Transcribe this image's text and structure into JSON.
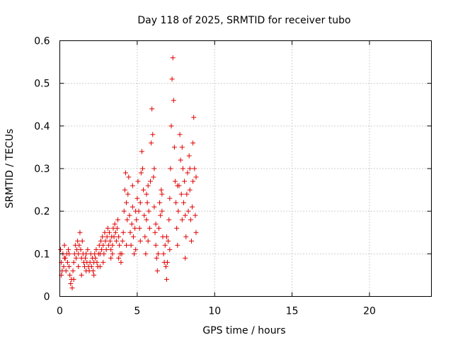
{
  "chart_data": {
    "type": "scatter",
    "title": "Day 118 of 2025, SRMTID for receiver tubo",
    "xlabel": "GPS time / hours",
    "ylabel": "SRMTID / TECUs",
    "xlim": [
      0,
      24
    ],
    "ylim": [
      0,
      0.6
    ],
    "xticks": [
      0,
      5,
      10,
      15,
      20
    ],
    "xtick_labels": [
      "0",
      "5",
      "10",
      "15",
      "20"
    ],
    "yticks": [
      0,
      0.1,
      0.2,
      0.3,
      0.4,
      0.5,
      0.6
    ],
    "ytick_labels": [
      "0",
      "0.1",
      "0.2",
      "0.3",
      "0.4",
      "0.5",
      "0.6"
    ],
    "grid": true,
    "marker": "+",
    "color": "#e00000",
    "series": [
      {
        "name": "SRMTID",
        "points": [
          [
            0.05,
            0.11
          ],
          [
            0.1,
            0.08
          ],
          [
            0.15,
            0.06
          ],
          [
            0.2,
            0.1
          ],
          [
            0.25,
            0.07
          ],
          [
            0.3,
            0.12
          ],
          [
            0.35,
            0.09
          ],
          [
            0.4,
            0.06
          ],
          [
            0.45,
            0.1
          ],
          [
            0.5,
            0.08
          ],
          [
            0.55,
            0.11
          ],
          [
            0.6,
            0.07
          ],
          [
            0.65,
            0.05
          ],
          [
            0.7,
            0.03
          ],
          [
            0.75,
            0.04
          ],
          [
            0.8,
            0.02
          ],
          [
            0.85,
            0.06
          ],
          [
            0.9,
            0.08
          ],
          [
            0.95,
            0.1
          ],
          [
            1.0,
            0.12
          ],
          [
            1.05,
            0.09
          ],
          [
            1.1,
            0.11
          ],
          [
            1.15,
            0.13
          ],
          [
            1.2,
            0.1
          ],
          [
            1.25,
            0.12
          ],
          [
            1.3,
            0.15
          ],
          [
            1.35,
            0.11
          ],
          [
            1.4,
            0.09
          ],
          [
            1.45,
            0.13
          ],
          [
            1.5,
            0.1
          ],
          [
            1.55,
            0.08
          ],
          [
            1.6,
            0.07
          ],
          [
            1.65,
            0.09
          ],
          [
            1.7,
            0.06
          ],
          [
            1.75,
            0.08
          ],
          [
            1.8,
            0.11
          ],
          [
            1.85,
            0.07
          ],
          [
            1.9,
            0.06
          ],
          [
            1.95,
            0.08
          ],
          [
            2.0,
            0.1
          ],
          [
            2.05,
            0.07
          ],
          [
            2.1,
            0.09
          ],
          [
            2.15,
            0.06
          ],
          [
            2.2,
            0.08
          ],
          [
            2.25,
            0.1
          ],
          [
            2.3,
            0.09
          ],
          [
            2.35,
            0.11
          ],
          [
            2.4,
            0.08
          ],
          [
            2.45,
            0.07
          ],
          [
            2.5,
            0.1
          ],
          [
            2.55,
            0.12
          ],
          [
            2.6,
            0.1
          ],
          [
            2.65,
            0.13
          ],
          [
            2.7,
            0.11
          ],
          [
            2.75,
            0.14
          ],
          [
            2.8,
            0.12
          ],
          [
            2.85,
            0.1
          ],
          [
            2.9,
            0.15
          ],
          [
            2.95,
            0.13
          ],
          [
            3.0,
            0.11
          ],
          [
            3.05,
            0.14
          ],
          [
            3.1,
            0.16
          ],
          [
            3.15,
            0.12
          ],
          [
            3.2,
            0.15
          ],
          [
            3.25,
            0.13
          ],
          [
            3.3,
            0.11
          ],
          [
            3.35,
            0.14
          ],
          [
            3.4,
            0.12
          ],
          [
            3.45,
            0.16
          ],
          [
            3.5,
            0.14
          ],
          [
            3.55,
            0.17
          ],
          [
            3.6,
            0.15
          ],
          [
            3.65,
            0.13
          ],
          [
            3.7,
            0.16
          ],
          [
            3.75,
            0.18
          ],
          [
            3.8,
            0.14
          ],
          [
            3.85,
            0.12
          ],
          [
            3.9,
            0.1
          ],
          [
            3.95,
            0.08
          ],
          [
            4.0,
            0.1
          ],
          [
            4.05,
            0.13
          ],
          [
            4.1,
            0.15
          ],
          [
            4.15,
            0.2
          ],
          [
            4.2,
            0.25
          ],
          [
            4.25,
            0.29
          ],
          [
            4.3,
            0.22
          ],
          [
            4.35,
            0.18
          ],
          [
            4.4,
            0.24
          ],
          [
            4.45,
            0.28
          ],
          [
            4.5,
            0.19
          ],
          [
            4.55,
            0.15
          ],
          [
            4.6,
            0.12
          ],
          [
            4.65,
            0.17
          ],
          [
            4.7,
            0.21
          ],
          [
            4.75,
            0.14
          ],
          [
            4.8,
            0.1
          ],
          [
            4.85,
            0.16
          ],
          [
            4.9,
            0.2
          ],
          [
            4.95,
            0.18
          ],
          [
            5.0,
            0.23
          ],
          [
            5.05,
            0.27
          ],
          [
            5.1,
            0.2
          ],
          [
            5.15,
            0.16
          ],
          [
            5.2,
            0.22
          ],
          [
            5.25,
            0.29
          ],
          [
            5.3,
            0.34
          ],
          [
            5.35,
            0.3
          ],
          [
            5.4,
            0.25
          ],
          [
            5.45,
            0.19
          ],
          [
            5.5,
            0.14
          ],
          [
            5.55,
            0.1
          ],
          [
            5.6,
            0.18
          ],
          [
            5.65,
            0.22
          ],
          [
            5.7,
            0.26
          ],
          [
            5.75,
            0.2
          ],
          [
            5.8,
            0.16
          ],
          [
            5.85,
            0.27
          ],
          [
            5.9,
            0.36
          ],
          [
            5.95,
            0.44
          ],
          [
            6.0,
            0.38
          ],
          [
            6.05,
            0.28
          ],
          [
            6.1,
            0.21
          ],
          [
            6.15,
            0.15
          ],
          [
            6.2,
            0.12
          ],
          [
            6.25,
            0.09
          ],
          [
            6.3,
            0.06
          ],
          [
            6.35,
            0.1
          ],
          [
            6.4,
            0.16
          ],
          [
            6.45,
            0.22
          ],
          [
            6.5,
            0.19
          ],
          [
            6.55,
            0.25
          ],
          [
            6.6,
            0.2
          ],
          [
            6.65,
            0.14
          ],
          [
            6.7,
            0.1
          ],
          [
            6.75,
            0.08
          ],
          [
            6.8,
            0.12
          ],
          [
            6.85,
            0.07
          ],
          [
            6.9,
            0.04
          ],
          [
            6.95,
            0.08
          ],
          [
            7.0,
            0.13
          ],
          [
            7.05,
            0.18
          ],
          [
            7.1,
            0.23
          ],
          [
            7.15,
            0.3
          ],
          [
            7.2,
            0.4
          ],
          [
            7.25,
            0.51
          ],
          [
            7.3,
            0.56
          ],
          [
            7.35,
            0.46
          ],
          [
            7.4,
            0.35
          ],
          [
            7.45,
            0.27
          ],
          [
            7.5,
            0.22
          ],
          [
            7.55,
            0.16
          ],
          [
            7.6,
            0.12
          ],
          [
            7.65,
            0.2
          ],
          [
            7.7,
            0.26
          ],
          [
            7.75,
            0.38
          ],
          [
            7.8,
            0.32
          ],
          [
            7.85,
            0.24
          ],
          [
            7.9,
            0.18
          ],
          [
            7.95,
            0.3
          ],
          [
            8.0,
            0.22
          ],
          [
            8.05,
            0.27
          ],
          [
            8.1,
            0.19
          ],
          [
            8.15,
            0.14
          ],
          [
            8.2,
            0.24
          ],
          [
            8.25,
            0.29
          ],
          [
            8.3,
            0.2
          ],
          [
            8.35,
            0.33
          ],
          [
            8.4,
            0.25
          ],
          [
            8.45,
            0.18
          ],
          [
            8.5,
            0.13
          ],
          [
            8.55,
            0.21
          ],
          [
            8.6,
            0.36
          ],
          [
            8.65,
            0.42
          ],
          [
            8.7,
            0.3
          ],
          [
            8.75,
            0.19
          ],
          [
            8.8,
            0.15
          ],
          [
            0.1,
            0.05
          ],
          [
            0.3,
            0.09
          ],
          [
            0.6,
            0.1
          ],
          [
            1.2,
            0.07
          ],
          [
            1.7,
            0.1
          ],
          [
            2.2,
            0.05
          ],
          [
            2.8,
            0.08
          ],
          [
            3.3,
            0.09
          ],
          [
            3.8,
            0.09
          ],
          [
            4.3,
            0.12
          ],
          [
            4.7,
            0.26
          ],
          [
            5.2,
            0.13
          ],
          [
            5.7,
            0.13
          ],
          [
            6.2,
            0.17
          ],
          [
            6.6,
            0.24
          ],
          [
            7.1,
            0.11
          ],
          [
            7.6,
            0.26
          ],
          [
            8.1,
            0.09
          ],
          [
            8.6,
            0.27
          ],
          [
            8.4,
            0.3
          ],
          [
            5.6,
            0.24
          ],
          [
            4.9,
            0.11
          ],
          [
            3.4,
            0.1
          ],
          [
            2.6,
            0.07
          ],
          [
            1.4,
            0.05
          ],
          [
            0.9,
            0.04
          ],
          [
            6.9,
            0.14
          ],
          [
            7.9,
            0.35
          ],
          [
            8.8,
            0.28
          ],
          [
            6.1,
            0.3
          ]
        ]
      }
    ]
  }
}
